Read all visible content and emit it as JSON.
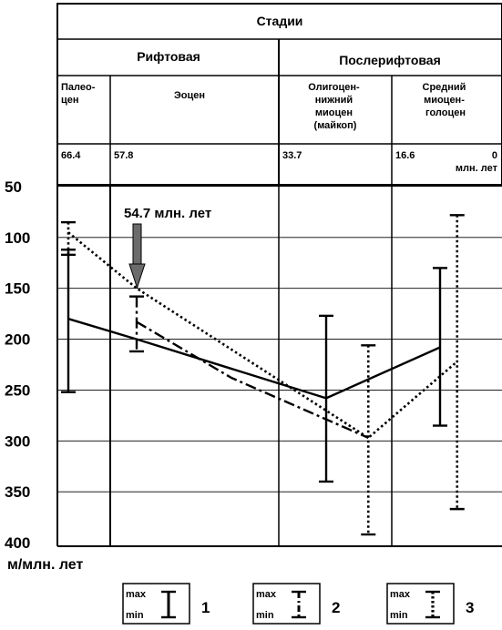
{
  "header": {
    "stages": "Стадии",
    "rift": "Рифтовая",
    "postrift": "Послерифтовая",
    "epochs": [
      [
        "Палео-",
        "цен"
      ],
      [
        "Эоцен"
      ],
      [
        "Олигоцен-",
        "нижний",
        "миоцен",
        "(майкоп)"
      ],
      [
        "Средний",
        "миоцен-",
        "голоцен"
      ]
    ],
    "ages": [
      "66.4",
      "57.8",
      "33.7",
      "16.6",
      "0"
    ],
    "ages_unit": "млн. лет"
  },
  "chart_data": {
    "type": "line",
    "ylabel": "м/млн. лет",
    "yticks": [
      50,
      100,
      150,
      200,
      250,
      300,
      350,
      400
    ],
    "ylim": [
      50,
      400
    ],
    "y_inverted": true,
    "annotation": "54.7 млн. лет",
    "series": [
      {
        "style": "solid",
        "points": [
          [
            0.0,
            180
          ],
          [
            1.0,
            200
          ],
          [
            2.0,
            258
          ],
          [
            3.0,
            208
          ]
        ],
        "ranges": [
          [
            0.0,
            112,
            252
          ],
          [
            2.0,
            177,
            340
          ],
          [
            3.0,
            130,
            285
          ]
        ]
      },
      {
        "style": "dash-dot",
        "points": [
          [
            1.0,
            183
          ],
          [
            1.5,
            238
          ],
          [
            2.37,
            297
          ]
        ],
        "ranges": [
          [
            1.0,
            158,
            212
          ]
        ]
      },
      {
        "style": "dotted",
        "points": [
          [
            0.0,
            95
          ],
          [
            1.0,
            150
          ],
          [
            2.37,
            297
          ],
          [
            3.15,
            222
          ]
        ],
        "ranges": [
          [
            0.0,
            85,
            117
          ],
          [
            2.37,
            206,
            392
          ],
          [
            3.15,
            78,
            367
          ]
        ]
      }
    ],
    "legend": [
      {
        "max": "max",
        "min": "min",
        "num": "1",
        "style": "solid"
      },
      {
        "max": "max",
        "min": "min",
        "num": "2",
        "style": "dash-dot"
      },
      {
        "max": "max",
        "min": "min",
        "num": "3",
        "style": "dotted"
      }
    ]
  }
}
